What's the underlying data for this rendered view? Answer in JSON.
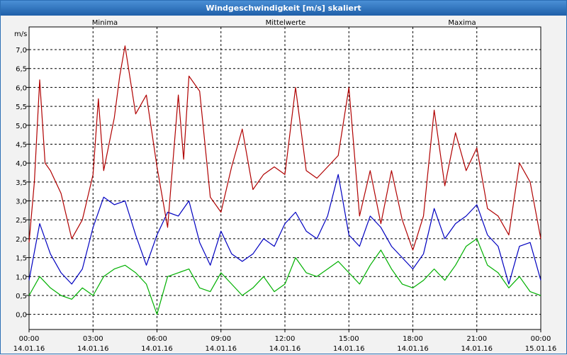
{
  "chart_data": {
    "type": "line",
    "title": "Windgeschwindigkeit [m/s] skaliert",
    "ylabel": "m/s",
    "ylim": [
      -0.4,
      7.6
    ],
    "yticks": [
      "0,0",
      "0,5",
      "1,0",
      "1,5",
      "2,0",
      "2,5",
      "3,0",
      "3,5",
      "4,0",
      "4,5",
      "5,0",
      "5,5",
      "6,0",
      "6,5",
      "7,0"
    ],
    "xlim": [
      0,
      24
    ],
    "xticks": [
      {
        "time": "00:00",
        "date": "14.01.16"
      },
      {
        "time": "03:00",
        "date": "14.01.16"
      },
      {
        "time": "06:00",
        "date": "14.01.16"
      },
      {
        "time": "09:00",
        "date": "14.01.16"
      },
      {
        "time": "12:00",
        "date": "14.01.16"
      },
      {
        "time": "15:00",
        "date": "14.01.16"
      },
      {
        "time": "18:00",
        "date": "14.01.16"
      },
      {
        "time": "21:00",
        "date": "14.01.16"
      },
      {
        "time": "00:00",
        "date": "15.01.16"
      }
    ],
    "grid": true,
    "legend_position": "top",
    "series": [
      {
        "name": "Minima",
        "color": "#00b000",
        "x": [
          0,
          0.5,
          1,
          1.5,
          2,
          2.5,
          3,
          3.5,
          4,
          4.5,
          5,
          5.5,
          6,
          6.5,
          7,
          7.5,
          8,
          8.5,
          9,
          9.5,
          10,
          10.5,
          11,
          11.5,
          12,
          12.5,
          13,
          13.5,
          14,
          14.5,
          15,
          15.5,
          16,
          16.5,
          17,
          17.5,
          18,
          18.5,
          19,
          19.5,
          20,
          20.5,
          21,
          21.5,
          22,
          22.5,
          23,
          23.5,
          24
        ],
        "values": [
          0.5,
          1.0,
          0.7,
          0.5,
          0.4,
          0.7,
          0.5,
          1.0,
          1.2,
          1.3,
          1.1,
          0.8,
          0.0,
          1.0,
          1.1,
          1.2,
          0.7,
          0.6,
          1.1,
          0.8,
          0.5,
          0.7,
          1.0,
          0.6,
          0.8,
          1.5,
          1.1,
          1.0,
          1.2,
          1.4,
          1.1,
          0.8,
          1.3,
          1.7,
          1.2,
          0.8,
          0.7,
          0.9,
          1.2,
          0.9,
          1.3,
          1.8,
          2.0,
          1.3,
          1.1,
          0.7,
          1.0,
          0.6,
          0.5
        ]
      },
      {
        "name": "Mittelwerte",
        "color": "#0000c0",
        "x": [
          0,
          0.5,
          1,
          1.5,
          2,
          2.5,
          3,
          3.5,
          4,
          4.5,
          5,
          5.5,
          6,
          6.5,
          7,
          7.5,
          8,
          8.5,
          9,
          9.5,
          10,
          10.5,
          11,
          11.5,
          12,
          12.5,
          13,
          13.5,
          14,
          14.5,
          15,
          15.5,
          16,
          16.5,
          17,
          17.5,
          18,
          18.5,
          19,
          19.5,
          20,
          20.5,
          21,
          21.5,
          22,
          22.5,
          23,
          23.5,
          24
        ],
        "values": [
          0.9,
          2.4,
          1.6,
          1.1,
          0.8,
          1.2,
          2.3,
          3.1,
          2.9,
          3.0,
          2.1,
          1.3,
          2.1,
          2.7,
          2.6,
          3.0,
          1.9,
          1.3,
          2.2,
          1.6,
          1.4,
          1.6,
          2.0,
          1.8,
          2.4,
          2.7,
          2.2,
          2.0,
          2.6,
          3.7,
          2.1,
          1.8,
          2.6,
          2.3,
          1.8,
          1.5,
          1.2,
          1.6,
          2.8,
          2.0,
          2.4,
          2.6,
          2.9,
          2.1,
          1.8,
          0.8,
          1.8,
          1.9,
          0.9
        ]
      },
      {
        "name": "Maxima",
        "color": "#b00000",
        "x": [
          0,
          0.25,
          0.5,
          0.75,
          1,
          1.5,
          2,
          2.5,
          3,
          3.25,
          3.5,
          4,
          4.25,
          4.5,
          5,
          5.5,
          6,
          6.5,
          7,
          7.25,
          7.5,
          8,
          8.5,
          9,
          9.5,
          10,
          10.5,
          11,
          11.5,
          12,
          12.5,
          13,
          13.5,
          14,
          14.5,
          15,
          15.5,
          16,
          16.5,
          17,
          17.5,
          18,
          18.5,
          19,
          19.5,
          20,
          20.5,
          21,
          21.5,
          22,
          22.5,
          23,
          23.5,
          24
        ],
        "values": [
          1.9,
          3.5,
          6.2,
          4.0,
          3.8,
          3.2,
          2.0,
          2.5,
          3.7,
          5.7,
          3.8,
          5.2,
          6.3,
          7.1,
          5.3,
          5.8,
          3.9,
          2.3,
          5.8,
          4.1,
          6.3,
          5.9,
          3.1,
          2.7,
          3.9,
          4.9,
          3.3,
          3.7,
          3.9,
          3.7,
          6.0,
          3.8,
          3.6,
          3.9,
          4.2,
          6.0,
          2.6,
          3.8,
          2.4,
          3.8,
          2.5,
          1.7,
          2.6,
          5.4,
          3.4,
          4.8,
          3.8,
          4.4,
          2.8,
          2.6,
          2.1,
          4.0,
          3.5,
          2.0
        ]
      }
    ]
  }
}
